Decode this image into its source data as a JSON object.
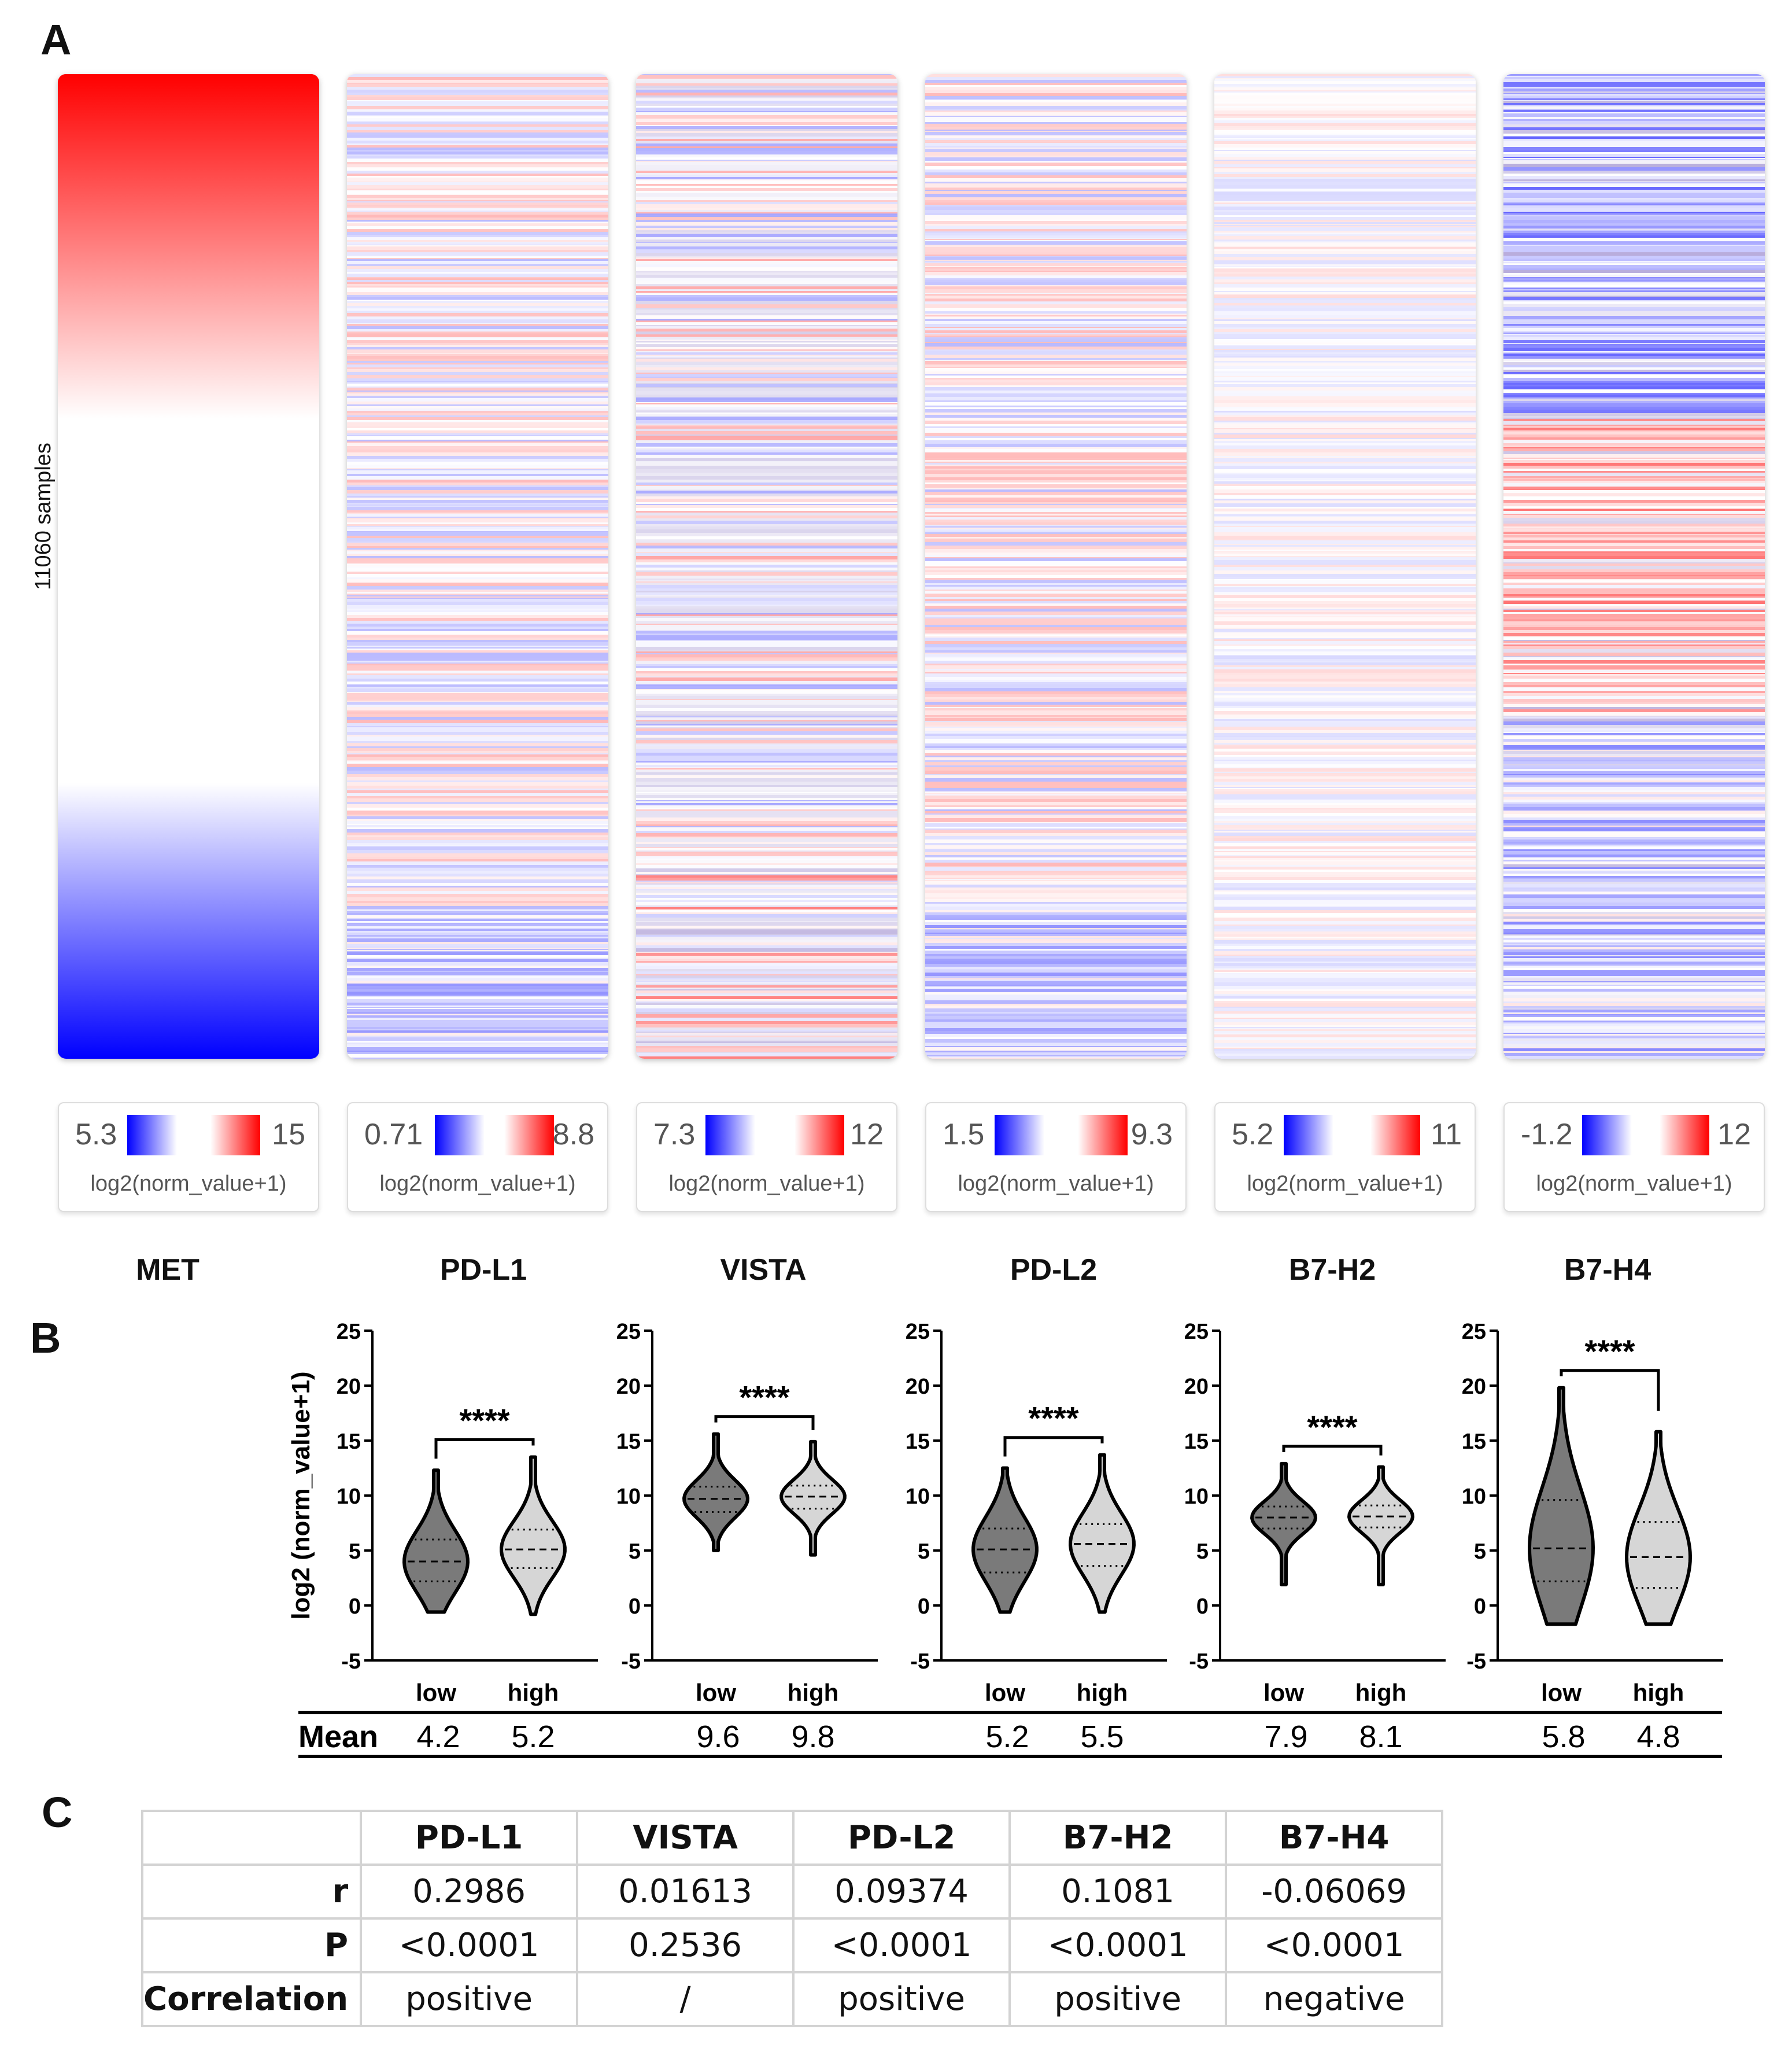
{
  "panel_labels": {
    "a": "A",
    "b": "B",
    "c": "C"
  },
  "heatmap": {
    "sample_label": "11060 samples",
    "unit": "log2(norm_value+1)",
    "columns": [
      {
        "gene": "MET",
        "min": "5.3",
        "max": "15",
        "pattern": "sorted"
      },
      {
        "gene": "PD-L1",
        "min": "0.71",
        "max": "8.8",
        "pattern": "mild"
      },
      {
        "gene": "VISTA",
        "min": "7.3",
        "max": "12",
        "pattern": "purple"
      },
      {
        "gene": "PD-L2",
        "min": "1.5",
        "max": "9.3",
        "pattern": "mild"
      },
      {
        "gene": "B7-H2",
        "min": "5.2",
        "max": "11",
        "pattern": "pale"
      },
      {
        "gene": "B7-H4",
        "min": "-1.2",
        "max": "12",
        "pattern": "blue_top"
      }
    ]
  },
  "chart_data": {
    "type": "violin",
    "ylabel": "log2 (norm_value+1)",
    "ylim": [
      -5,
      25
    ],
    "yticks": [
      -5,
      0,
      5,
      10,
      15,
      20,
      25
    ],
    "categories": [
      "low",
      "high"
    ],
    "mean_label": "Mean",
    "panels": [
      {
        "gene": "PD-L1",
        "significance": "****",
        "low": {
          "mean": "4.2",
          "min": -0.6,
          "max": 12.3,
          "q1": 2.2,
          "median": 4.0,
          "q3": 6.0
        },
        "high": {
          "mean": "5.2",
          "min": -0.8,
          "max": 13.5,
          "q1": 3.4,
          "median": 5.1,
          "q3": 6.9
        }
      },
      {
        "gene": "VISTA",
        "significance": "****",
        "low": {
          "mean": "9.6",
          "min": 5.0,
          "max": 15.6,
          "q1": 8.5,
          "median": 9.7,
          "q3": 10.8
        },
        "high": {
          "mean": "9.8",
          "min": 4.6,
          "max": 14.9,
          "q1": 8.8,
          "median": 9.9,
          "q3": 10.9
        }
      },
      {
        "gene": "PD-L2",
        "significance": "****",
        "low": {
          "mean": "5.2",
          "min": -0.6,
          "max": 12.5,
          "q1": 3.0,
          "median": 5.1,
          "q3": 7.0
        },
        "high": {
          "mean": "5.5",
          "min": -0.6,
          "max": 13.7,
          "q1": 3.6,
          "median": 5.6,
          "q3": 7.4
        }
      },
      {
        "gene": "B7-H2",
        "significance": "****",
        "low": {
          "mean": "7.9",
          "min": 1.9,
          "max": 12.9,
          "q1": 7.0,
          "median": 8.0,
          "q3": 9.0
        },
        "high": {
          "mean": "8.1",
          "min": 1.9,
          "max": 12.6,
          "q1": 7.1,
          "median": 8.1,
          "q3": 9.1
        }
      },
      {
        "gene": "B7-H4",
        "significance": "****",
        "low": {
          "mean": "5.8",
          "min": -1.7,
          "max": 19.8,
          "q1": 2.2,
          "median": 5.2,
          "q3": 9.6
        },
        "high": {
          "mean": "4.8",
          "min": -1.7,
          "max": 15.8,
          "q1": 1.6,
          "median": 4.4,
          "q3": 7.6
        }
      }
    ]
  },
  "correlation_table": {
    "columns": [
      "PD-L1",
      "VISTA",
      "PD-L2",
      "B7-H2",
      "B7-H4"
    ],
    "rows": [
      {
        "label": "r",
        "values": [
          "0.2986",
          "0.01613",
          "0.09374",
          "0.1081",
          "-0.06069"
        ]
      },
      {
        "label": "P",
        "values": [
          "<0.0001",
          "0.2536",
          "<0.0001",
          "<0.0001",
          "<0.0001"
        ]
      },
      {
        "label": "Correlation",
        "values": [
          "positive",
          "/",
          "positive",
          "positive",
          "negative"
        ]
      }
    ]
  }
}
